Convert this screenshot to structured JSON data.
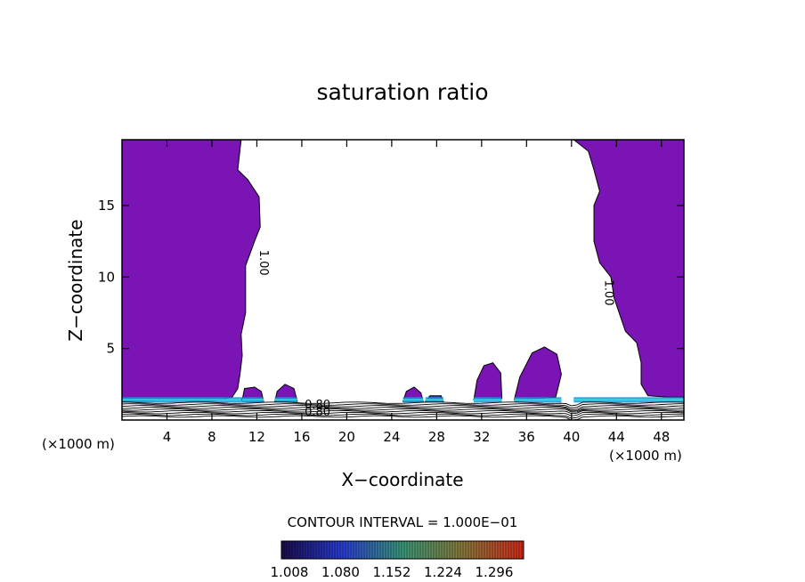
{
  "chart_data": {
    "type": "contour",
    "title": "saturation ratio",
    "xlabel": "X−coordinate",
    "ylabel": "Z−coordinate",
    "x_unit_label": "(×1000 m)",
    "y_unit_label": "(×1000 m)",
    "x_ticks": [
      4,
      8,
      12,
      16,
      20,
      24,
      28,
      32,
      36,
      40,
      44,
      48
    ],
    "y_ticks": [
      5,
      10,
      15
    ],
    "xlim": [
      0,
      50
    ],
    "ylim": [
      0,
      19.6
    ],
    "contour_interval_text": "CONTOUR INTERVAL = 1.000E−01",
    "contour_labels": [
      {
        "text": "1.00",
        "x": 12.3,
        "z": 11.0
      },
      {
        "text": "1.00",
        "x": 43.0,
        "z": 8.9
      },
      {
        "text": "0.80",
        "x": 17.4,
        "z": 0.8
      },
      {
        "text": "0.80",
        "x": 17.4,
        "z": 0.3
      }
    ],
    "colorbar": {
      "tick_labels": [
        "1.008",
        "1.080",
        "1.152",
        "1.224",
        "1.296"
      ],
      "colors": [
        "#1a0b4a",
        "#2a3dd6",
        "#3a9a7a",
        "#8a7a3a",
        "#d42a1a"
      ]
    },
    "fill_color": "#7a14b4",
    "moist_regions": [
      {
        "name": "left",
        "outline": [
          [
            0,
            19.6
          ],
          [
            10.6,
            19.6
          ],
          [
            10.3,
            17.5
          ],
          [
            11.2,
            16.8
          ],
          [
            12.2,
            15.6
          ],
          [
            12.3,
            13.5
          ],
          [
            11.8,
            12.5
          ],
          [
            11.0,
            10.8
          ],
          [
            11.0,
            7.5
          ],
          [
            10.6,
            6.0
          ],
          [
            10.7,
            4.5
          ],
          [
            10.5,
            3.2
          ],
          [
            10.3,
            2.2
          ],
          [
            9.8,
            1.6
          ],
          [
            8.0,
            1.3
          ],
          [
            4.0,
            1.4
          ],
          [
            1.0,
            1.3
          ],
          [
            0,
            1.3
          ]
        ]
      },
      {
        "name": "right",
        "outline": [
          [
            50,
            19.6
          ],
          [
            40.2,
            19.6
          ],
          [
            41.5,
            18.8
          ],
          [
            42.0,
            17.5
          ],
          [
            42.5,
            16.0
          ],
          [
            42.0,
            15.0
          ],
          [
            42.0,
            12.5
          ],
          [
            42.5,
            11.0
          ],
          [
            43.5,
            10.0
          ],
          [
            43.8,
            8.5
          ],
          [
            44.8,
            6.2
          ],
          [
            45.8,
            5.4
          ],
          [
            46.2,
            4.0
          ],
          [
            46.2,
            2.5
          ],
          [
            46.8,
            1.7
          ],
          [
            48.5,
            1.6
          ],
          [
            50,
            1.6
          ]
        ]
      },
      {
        "name": "cell-12",
        "outline": [
          [
            10.7,
            1.4
          ],
          [
            10.9,
            2.2
          ],
          [
            11.8,
            2.3
          ],
          [
            12.4,
            2.0
          ],
          [
            12.6,
            1.3
          ]
        ]
      },
      {
        "name": "cell-14",
        "outline": [
          [
            13.6,
            1.3
          ],
          [
            13.8,
            2.0
          ],
          [
            14.5,
            2.5
          ],
          [
            15.3,
            2.2
          ],
          [
            15.6,
            1.3
          ]
        ]
      },
      {
        "name": "cell-26",
        "outline": [
          [
            25.0,
            1.3
          ],
          [
            25.3,
            2.0
          ],
          [
            26.0,
            2.3
          ],
          [
            26.6,
            1.9
          ],
          [
            26.8,
            1.3
          ]
        ]
      },
      {
        "name": "cell-28",
        "outline": [
          [
            27.0,
            1.3
          ],
          [
            27.4,
            1.7
          ],
          [
            28.4,
            1.7
          ],
          [
            28.6,
            1.3
          ]
        ]
      },
      {
        "name": "cell-32",
        "outline": [
          [
            31.3,
            1.4
          ],
          [
            31.6,
            2.8
          ],
          [
            32.2,
            3.8
          ],
          [
            33.0,
            4.0
          ],
          [
            33.7,
            3.3
          ],
          [
            33.8,
            1.5
          ]
        ]
      },
      {
        "name": "cell-37",
        "outline": [
          [
            34.9,
            1.4
          ],
          [
            35.4,
            3.0
          ],
          [
            36.5,
            4.7
          ],
          [
            37.6,
            5.1
          ],
          [
            38.7,
            4.6
          ],
          [
            39.1,
            3.2
          ],
          [
            38.6,
            1.6
          ]
        ]
      }
    ]
  }
}
